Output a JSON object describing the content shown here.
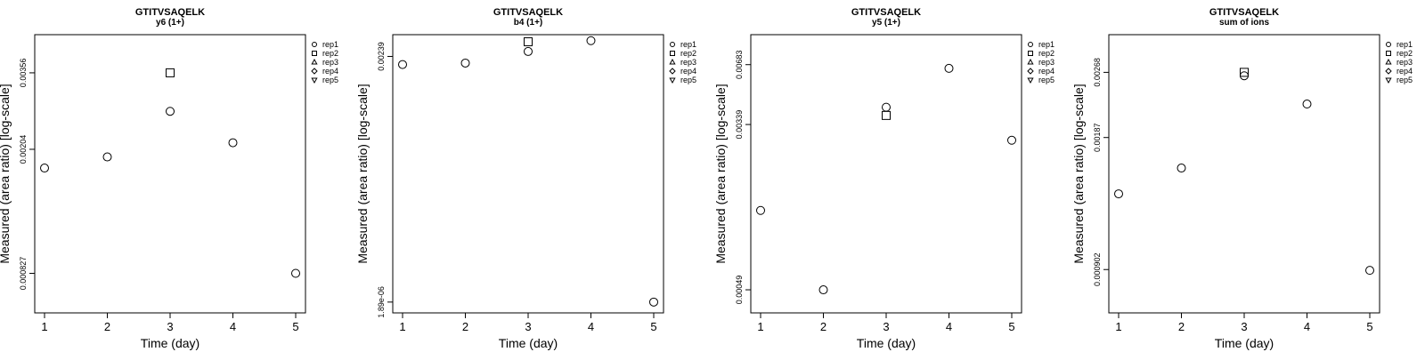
{
  "chart_data": [
    {
      "type": "scatter",
      "title": "GTITVSAQELK",
      "subtitle": "y6 (1+)",
      "xlabel": "Time (day)",
      "ylabel": "Measured (area ratio) [log-scale]",
      "x_ticks": [
        "1",
        "2",
        "3",
        "4",
        "5"
      ],
      "y_ticks": [
        {
          "label": "0.000827",
          "value": 0.000827
        },
        {
          "label": "0.00204",
          "value": 0.00204
        },
        {
          "label": "0.00356",
          "value": 0.00356
        }
      ],
      "ylim": [
        0.00062,
        0.0047
      ],
      "y_scale": "log",
      "legend": [
        "rep1",
        "rep2",
        "rep3",
        "rep4",
        "rep5"
      ],
      "legend_position": "right",
      "series": [
        {
          "name": "rep1",
          "marker": "circle",
          "points": [
            {
              "x": 1,
              "y": 0.00178
            },
            {
              "x": 2,
              "y": 0.00193
            },
            {
              "x": 3,
              "y": 0.00269
            },
            {
              "x": 4,
              "y": 0.00214
            },
            {
              "x": 5,
              "y": 0.000827
            }
          ]
        },
        {
          "name": "rep2",
          "marker": "square",
          "points": [
            {
              "x": 3,
              "y": 0.00356
            }
          ]
        }
      ]
    },
    {
      "type": "scatter",
      "title": "GTITVSAQELK",
      "subtitle": "b4 (1+)",
      "xlabel": "Time (day)",
      "ylabel": "Measured (area ratio) [log-scale]",
      "x_ticks": [
        "1",
        "2",
        "3",
        "4",
        "5"
      ],
      "y_ticks": [
        {
          "label": "1.89e-06",
          "value": 1.89e-06
        },
        {
          "label": "0.00239",
          "value": 0.00239
        }
      ],
      "ylim": [
        1.38e-06,
        0.0045
      ],
      "y_scale": "log",
      "legend": [
        "rep1",
        "rep2",
        "rep3",
        "rep4",
        "rep5"
      ],
      "legend_position": "right",
      "series": [
        {
          "name": "rep1",
          "marker": "circle",
          "points": [
            {
              "x": 1,
              "y": 0.00189
            },
            {
              "x": 2,
              "y": 0.00197
            },
            {
              "x": 3,
              "y": 0.00276
            },
            {
              "x": 4,
              "y": 0.00378
            },
            {
              "x": 5,
              "y": 1.89e-06
            }
          ]
        },
        {
          "name": "rep2",
          "marker": "square",
          "points": [
            {
              "x": 3,
              "y": 0.00366
            }
          ]
        }
      ]
    },
    {
      "type": "scatter",
      "title": "GTITVSAQELK",
      "subtitle": "y5 (1+)",
      "xlabel": "Time (day)",
      "ylabel": "Measured (area ratio) [log-scale]",
      "x_ticks": [
        "1",
        "2",
        "3",
        "4",
        "5"
      ],
      "y_ticks": [
        {
          "label": "0.00049",
          "value": 0.00049
        },
        {
          "label": "0.00339",
          "value": 0.00339
        },
        {
          "label": "0.00683",
          "value": 0.00683
        }
      ],
      "ylim": [
        0.000374,
        0.0097
      ],
      "y_scale": "log",
      "legend": [
        "rep1",
        "rep2",
        "rep3",
        "rep4",
        "rep5"
      ],
      "legend_position": "right",
      "series": [
        {
          "name": "rep1",
          "marker": "circle",
          "points": [
            {
              "x": 1,
              "y": 0.00124
            },
            {
              "x": 2,
              "y": 0.00049
            },
            {
              "x": 3,
              "y": 0.00415
            },
            {
              "x": 4,
              "y": 0.00654
            },
            {
              "x": 5,
              "y": 0.00282
            }
          ]
        },
        {
          "name": "rep2",
          "marker": "square",
          "points": [
            {
              "x": 3,
              "y": 0.00377
            }
          ]
        }
      ]
    },
    {
      "type": "scatter",
      "title": "GTITVSAQELK",
      "subtitle": "sum of ions",
      "xlabel": "Time (day)",
      "ylabel": "Measured (area ratio) [log-scale]",
      "x_ticks": [
        "1",
        "2",
        "3",
        "4",
        "5"
      ],
      "y_ticks": [
        {
          "label": "0.000902",
          "value": 0.000902
        },
        {
          "label": "0.00187",
          "value": 0.00187
        },
        {
          "label": "0.00268",
          "value": 0.00268
        }
      ],
      "ylim": [
        0.00071,
        0.0033
      ],
      "y_scale": "log",
      "legend": [
        "rep1",
        "rep2",
        "rep3",
        "rep4",
        "rep5"
      ],
      "legend_position": "right",
      "series": [
        {
          "name": "rep1",
          "marker": "circle",
          "points": [
            {
              "x": 1,
              "y": 0.00137
            },
            {
              "x": 2,
              "y": 0.00158
            },
            {
              "x": 3,
              "y": 0.00263
            },
            {
              "x": 4,
              "y": 0.00225
            },
            {
              "x": 5,
              "y": 0.000898
            }
          ]
        },
        {
          "name": "rep2",
          "marker": "square",
          "points": [
            {
              "x": 3,
              "y": 0.00268
            }
          ]
        }
      ]
    }
  ]
}
